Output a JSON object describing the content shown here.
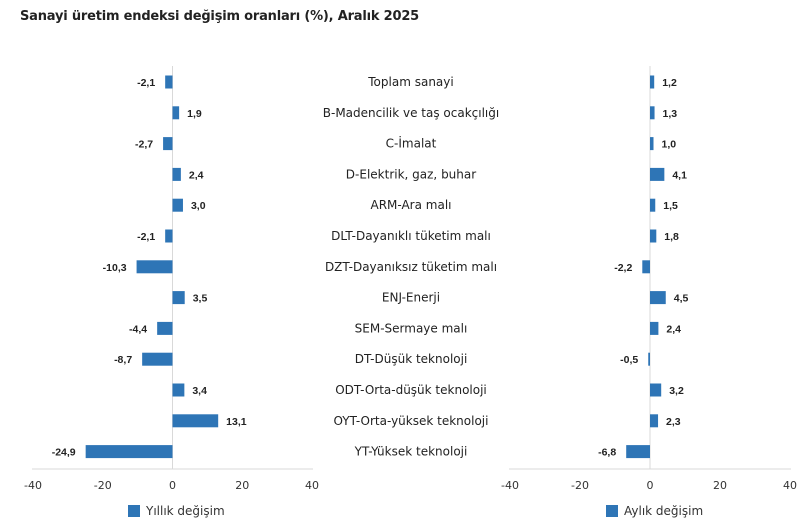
{
  "title": "Sanayi üretim endeksi değişim oranları (%), Aralık 2025",
  "chart_data": [
    {
      "type": "bar",
      "orientation": "horizontal",
      "name": "left-panel",
      "categories": [
        "Toplam sanayi",
        "B-Madencilik ve taş ocakçılığı",
        "C-İmalat",
        "D-Elektrik, gaz, buhar",
        "ARM-Ara malı",
        "DLT-Dayanıklı tüketim malı",
        "DZT-Dayanıksız tüketim malı",
        "ENJ-Enerji",
        "SEM-Sermaye malı",
        "DT-Düşük teknoloji",
        "ODT-Orta-düşük teknoloji",
        "OYT-Orta-yüksek teknoloji",
        "YT-Yüksek teknoloji"
      ],
      "series": [
        {
          "name": "Yıllık değişim",
          "color": "#2E75B6",
          "values": [
            -2.1,
            1.9,
            -2.7,
            2.4,
            3.0,
            -2.1,
            -10.3,
            3.5,
            -4.4,
            -8.7,
            3.4,
            13.1,
            -24.9
          ],
          "labels": [
            "-2,1",
            "1,9",
            "-2,7",
            "2,4",
            "3,0",
            "-2,1",
            "-10,3",
            "3,5",
            "-4,4",
            "-8,7",
            "3,4",
            "13,1",
            "-24,9"
          ]
        }
      ],
      "xlim": [
        -40,
        40
      ],
      "xticks": [
        "-40",
        "-20",
        "0",
        "20",
        "40"
      ],
      "legend": "bottom-center",
      "grid": false
    },
    {
      "type": "bar",
      "orientation": "horizontal",
      "name": "right-panel",
      "categories": [
        "Toplam sanayi",
        "B-Madencilik ve taş ocakçılığı",
        "C-İmalat",
        "D-Elektrik, gaz, buhar",
        "ARM-Ara malı",
        "DLT-Dayanıklı tüketim malı",
        "DZT-Dayanıksız tüketim malı",
        "ENJ-Enerji",
        "SEM-Sermaye malı",
        "DT-Düşük teknoloji",
        "ODT-Orta-düşük teknoloji",
        "OYT-Orta-yüksek teknoloji",
        "YT-Yüksek teknoloji"
      ],
      "series": [
        {
          "name": "Aylık değişim",
          "color": "#2E75B6",
          "values": [
            1.2,
            1.3,
            1.0,
            4.1,
            1.5,
            1.8,
            -2.2,
            4.5,
            2.4,
            -0.5,
            3.2,
            2.3,
            -6.8
          ],
          "labels": [
            "1,2",
            "1,3",
            "1,0",
            "4,1",
            "1,5",
            "1,8",
            "-2,2",
            "4,5",
            "2,4",
            "-0,5",
            "3,2",
            "2,3",
            "-6,8"
          ]
        }
      ],
      "xlim": [
        -40,
        40
      ],
      "xticks": [
        "-40",
        "-20",
        "0",
        "20",
        "40"
      ],
      "legend": "bottom-center",
      "grid": false
    }
  ]
}
